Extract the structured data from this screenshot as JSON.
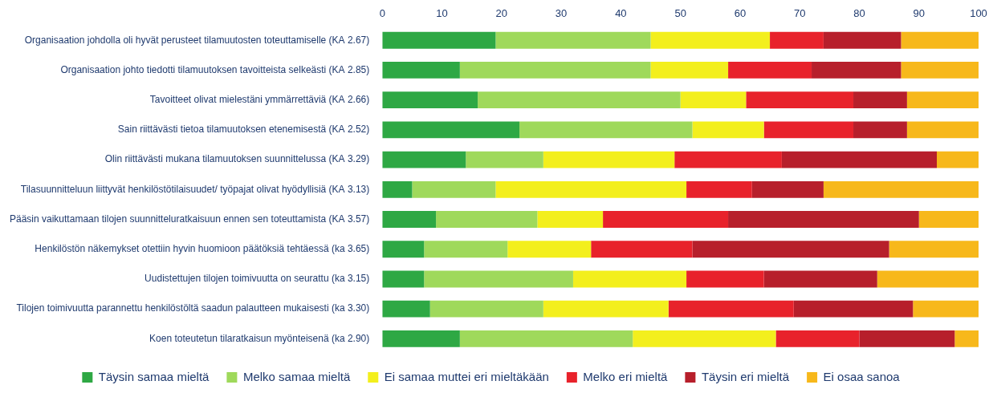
{
  "chart_data": {
    "type": "bar",
    "orientation": "horizontal",
    "stacked": true,
    "grid": false,
    "legend": "bottom",
    "categories": [
      "Organisaation johdolla oli hyvät perusteet tilamuutosten toteuttamiselle (KA 2.67)",
      "Organisaation johto tiedotti tilamuutoksen tavoitteista selkeästi (KA 2.85)",
      "Tavoitteet olivat mielestäni ymmärrettäviä (KA 2.66)",
      "Sain riittävästi tietoa tilamuutoksen etenemisestä (KA 2.52)",
      "Olin riittävästi mukana tilamuutoksen suunnittelussa (KA 3.29)",
      "Tilasuunnitteluun liittyvät henkilöstötilaisuudet/ työpajat olivat hyödyllisiä (KA 3.13)",
      "Pääsin vaikuttamaan tilojen suunnitteluratkaisuun ennen sen toteuttamista (KA 3.57)",
      "Henkilöstön näkemykset otettiin hyvin huomioon päätöksiä tehtäessä (ka 3.65)",
      "Uudistettujen tilojen toimivuutta on seurattu (ka 3.15)",
      "Tilojen toimivuutta parannettu henkilöstöltä saadun palautteen mukaisesti (ka 3.30)",
      "Koen toteutetun tilaratkaisun myönteisenä (ka 2.90)"
    ],
    "series": [
      {
        "name": "Täysin samaa mieltä",
        "color": "#2ea844",
        "values": [
          19,
          13,
          16,
          23,
          14,
          5,
          9,
          7,
          7,
          8,
          13
        ]
      },
      {
        "name": "Melko samaa mieltä",
        "color": "#9fd95b",
        "values": [
          26,
          32,
          34,
          29,
          13,
          14,
          17,
          14,
          25,
          19,
          29
        ]
      },
      {
        "name": "Ei samaa muttei eri mieltäkään",
        "color": "#f3ef1d",
        "values": [
          20,
          13,
          11,
          12,
          22,
          32,
          11,
          14,
          19,
          21,
          24
        ]
      },
      {
        "name": "Melko eri mieltä",
        "color": "#e8222b",
        "values": [
          9,
          14,
          18,
          15,
          18,
          11,
          21,
          17,
          13,
          21,
          14
        ]
      },
      {
        "name": "Täysin eri mieltä",
        "color": "#b71f2b",
        "values": [
          13,
          15,
          9,
          9,
          26,
          12,
          32,
          33,
          19,
          20,
          16
        ]
      },
      {
        "name": "Ei osaa sanoa",
        "color": "#f7b81b",
        "values": [
          13,
          13,
          12,
          12,
          7,
          26,
          10,
          15,
          17,
          11,
          4
        ]
      }
    ],
    "xlim": [
      0,
      100
    ],
    "xticks": [
      0,
      10,
      20,
      30,
      40,
      50,
      60,
      70,
      80,
      90,
      100
    ]
  }
}
